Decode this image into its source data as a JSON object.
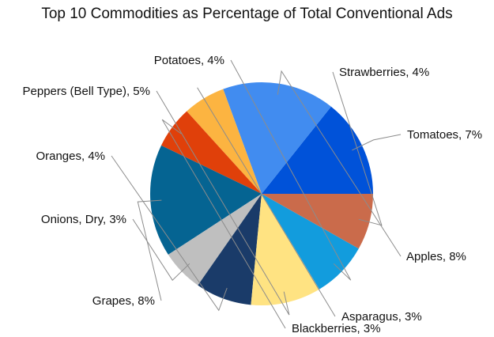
{
  "chart_data": {
    "type": "pie",
    "title": "Top 10 Commodities as Percentage of Total Conventional Ads",
    "legend": "none",
    "slices": [
      {
        "category": "Tomatoes",
        "value": 7,
        "label": "Tomatoes, 7%",
        "color": "#0052d9"
      },
      {
        "category": "Apples",
        "value": 8,
        "label": "Apples, 8%",
        "color": "#418cf0"
      },
      {
        "category": "Asparagus",
        "value": 3,
        "label": "Asparagus, 3%",
        "color": "#fcb441"
      },
      {
        "category": "Blackberries",
        "value": 3,
        "label": "Blackberries, 3%",
        "color": "#e0400a"
      },
      {
        "category": "Grapes",
        "value": 8,
        "label": "Grapes, 8%",
        "color": "#056492"
      },
      {
        "category": "Onions, Dry",
        "value": 3,
        "label": "Onions, Dry, 3%",
        "color": "#bfbfbf"
      },
      {
        "category": "Oranges",
        "value": 4,
        "label": "Oranges, 4%",
        "color": "#1a3b69"
      },
      {
        "category": "Peppers (Bell Type)",
        "value": 5,
        "label": "Peppers (Bell Type), 5%",
        "color": "#ffe382"
      },
      {
        "category": "Potatoes",
        "value": 4,
        "label": "Potatoes, 4%",
        "color": "#129cdd"
      },
      {
        "category": "Strawberries",
        "value": 4,
        "label": "Strawberries, 4%",
        "color": "#ca6b4b"
      }
    ]
  }
}
